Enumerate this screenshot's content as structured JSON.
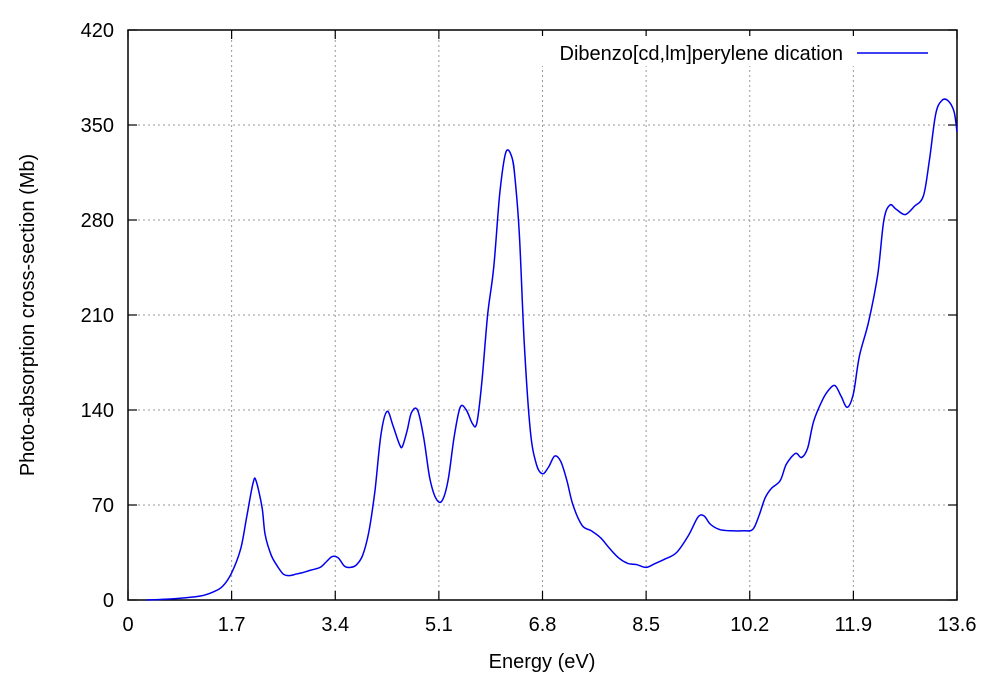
{
  "chart_data": {
    "type": "line",
    "xlabel": "Energy (eV)",
    "ylabel": "Photo-absorption cross-section (Mb)",
    "xlim": [
      0,
      13.6
    ],
    "ylim": [
      0,
      420
    ],
    "xticks": [
      0,
      1.7,
      3.4,
      5.1,
      6.8,
      8.5,
      10.2,
      11.9,
      13.6
    ],
    "xtick_labels": [
      "0",
      "1.7",
      "3.4",
      "5.1",
      "6.8",
      "8.5",
      "10.2",
      "11.9",
      "13.6"
    ],
    "yticks": [
      0,
      70,
      140,
      210,
      280,
      350,
      420
    ],
    "ytick_labels": [
      "0",
      "70",
      "140",
      "210",
      "280",
      "350",
      "420"
    ],
    "grid": true,
    "legend_position": "top-right",
    "series": [
      {
        "name": "Dibenzo[cd,lm]perylene dication",
        "color": "#0000ee",
        "x": [
          0.3,
          0.6,
          0.9,
          1.2,
          1.4,
          1.55,
          1.7,
          1.85,
          1.95,
          2.05,
          2.1,
          2.2,
          2.25,
          2.35,
          2.45,
          2.55,
          2.65,
          2.75,
          2.85,
          3.0,
          3.15,
          3.25,
          3.35,
          3.45,
          3.55,
          3.65,
          3.75,
          3.85,
          3.95,
          4.05,
          4.15,
          4.25,
          4.35,
          4.45,
          4.5,
          4.58,
          4.65,
          4.75,
          4.85,
          4.95,
          5.05,
          5.15,
          5.25,
          5.35,
          5.45,
          5.55,
          5.65,
          5.72,
          5.8,
          5.9,
          6.0,
          6.1,
          6.2,
          6.3,
          6.35,
          6.42,
          6.5,
          6.6,
          6.7,
          6.8,
          6.9,
          7.0,
          7.1,
          7.2,
          7.3,
          7.45,
          7.6,
          7.75,
          7.9,
          8.05,
          8.2,
          8.35,
          8.5,
          8.65,
          8.8,
          9.0,
          9.2,
          9.35,
          9.45,
          9.55,
          9.7,
          9.9,
          10.1,
          10.25,
          10.35,
          10.45,
          10.55,
          10.7,
          10.8,
          10.95,
          11.05,
          11.15,
          11.25,
          11.4,
          11.5,
          11.6,
          11.7,
          11.8,
          11.9,
          12.0,
          12.15,
          12.3,
          12.4,
          12.5,
          12.6,
          12.75,
          12.9,
          13.05,
          13.15,
          13.25,
          13.35,
          13.45,
          13.55,
          13.6
        ],
        "y": [
          0,
          0.5,
          1.5,
          3,
          6,
          10,
          20,
          38,
          62,
          86,
          88,
          68,
          48,
          33,
          25,
          19,
          18,
          19,
          20,
          22,
          24,
          28,
          32,
          31,
          25,
          24,
          26,
          33,
          50,
          80,
          122,
          139,
          128,
          115,
          113,
          125,
          138,
          140,
          120,
          90,
          75,
          73,
          88,
          120,
          142,
          140,
          130,
          130,
          158,
          210,
          245,
          300,
          330,
          326,
          310,
          270,
          190,
          125,
          100,
          93,
          98,
          106,
          102,
          88,
          70,
          55,
          51,
          46,
          38,
          31,
          27,
          26,
          24,
          27,
          30,
          35,
          48,
          61,
          62,
          56,
          52,
          51,
          51,
          52,
          62,
          75,
          82,
          88,
          100,
          108,
          105,
          112,
          132,
          148,
          155,
          158,
          150,
          142,
          152,
          180,
          205,
          240,
          280,
          291,
          288,
          284,
          290,
          298,
          325,
          358,
          368,
          368,
          360,
          345
        ]
      }
    ]
  }
}
